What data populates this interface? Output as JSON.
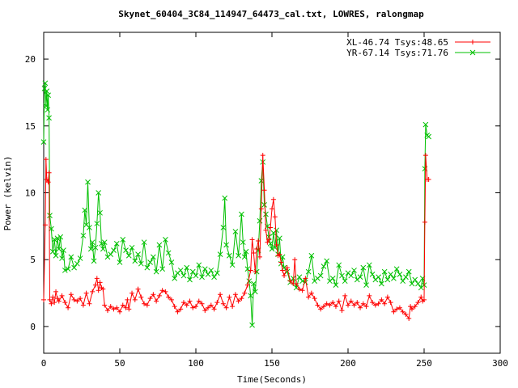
{
  "chart_data": {
    "type": "line",
    "title": "Skynet_60404_3C84_114947_64473_cal.txt, LOWRES, ralongmap",
    "xlabel": "Time(Seconds)",
    "ylabel": "Power (kelvin)",
    "xlim": [
      0,
      300
    ],
    "ylim": [
      -2,
      22
    ],
    "xticks": [
      0,
      50,
      100,
      150,
      200,
      250,
      300
    ],
    "yticks": [
      0,
      5,
      10,
      15,
      20
    ],
    "grid": false,
    "legend_position": "top-right",
    "series": [
      {
        "name": "XL-46.74 Tsys:48.65",
        "color": "#ff0000",
        "marker": "+",
        "points": [
          [
            0,
            2
          ],
          [
            1,
            7.6
          ],
          [
            1.5,
            12.5
          ],
          [
            2,
            11
          ],
          [
            3,
            10.8
          ],
          [
            3.5,
            11.5
          ],
          [
            4,
            2
          ],
          [
            5,
            1.7
          ],
          [
            6,
            2.2
          ],
          [
            7,
            1.8
          ],
          [
            8,
            2.6
          ],
          [
            9,
            2.1
          ],
          [
            10,
            1.9
          ],
          [
            12,
            2.3
          ],
          [
            14,
            1.8
          ],
          [
            16,
            1.4
          ],
          [
            18,
            2.4
          ],
          [
            20,
            2
          ],
          [
            22,
            1.9
          ],
          [
            24,
            2.1
          ],
          [
            26,
            1.6
          ],
          [
            28,
            2.5
          ],
          [
            30,
            1.7
          ],
          [
            32,
            2.6
          ],
          [
            34,
            3.1
          ],
          [
            35,
            3.6
          ],
          [
            36,
            2.7
          ],
          [
            37,
            3.3
          ],
          [
            38,
            2.9
          ],
          [
            39,
            2.8
          ],
          [
            40,
            1.6
          ],
          [
            42,
            1.2
          ],
          [
            44,
            1.5
          ],
          [
            46,
            1.3
          ],
          [
            48,
            1.4
          ],
          [
            50,
            1.1
          ],
          [
            52,
            1.6
          ],
          [
            54,
            1.4
          ],
          [
            55,
            2
          ],
          [
            56,
            1.3
          ],
          [
            58,
            2.5
          ],
          [
            60,
            2
          ],
          [
            62,
            2.8
          ],
          [
            64,
            2.2
          ],
          [
            66,
            1.7
          ],
          [
            68,
            1.6
          ],
          [
            70,
            2.1
          ],
          [
            72,
            2.4
          ],
          [
            74,
            1.9
          ],
          [
            76,
            2.3
          ],
          [
            78,
            2.7
          ],
          [
            80,
            2.6
          ],
          [
            82,
            2.2
          ],
          [
            84,
            2
          ],
          [
            86,
            1.5
          ],
          [
            88,
            1.1
          ],
          [
            90,
            1.3
          ],
          [
            92,
            1.8
          ],
          [
            94,
            1.6
          ],
          [
            96,
            1.9
          ],
          [
            98,
            1.4
          ],
          [
            100,
            1.5
          ],
          [
            102,
            1.9
          ],
          [
            104,
            1.7
          ],
          [
            106,
            1.2
          ],
          [
            108,
            1.4
          ],
          [
            110,
            1.6
          ],
          [
            112,
            1.3
          ],
          [
            114,
            1.8
          ],
          [
            116,
            2.4
          ],
          [
            118,
            1.7
          ],
          [
            120,
            1.4
          ],
          [
            122,
            2.2
          ],
          [
            124,
            1.5
          ],
          [
            126,
            2.4
          ],
          [
            128,
            1.9
          ],
          [
            130,
            2.1
          ],
          [
            132,
            2.5
          ],
          [
            134,
            3.1
          ],
          [
            136,
            4.2
          ],
          [
            137,
            6.5
          ],
          [
            138,
            5.5
          ],
          [
            139,
            4.1
          ],
          [
            140,
            5.8
          ],
          [
            141,
            6.4
          ],
          [
            142,
            5.2
          ],
          [
            143,
            8.8
          ],
          [
            144,
            12.8
          ],
          [
            145,
            10.2
          ],
          [
            146,
            7.2
          ],
          [
            147,
            6.3
          ],
          [
            148,
            6.5
          ],
          [
            149,
            7.4
          ],
          [
            150,
            8.8
          ],
          [
            151,
            9.5
          ],
          [
            152,
            8.2
          ],
          [
            153,
            6.1
          ],
          [
            154,
            5.3
          ],
          [
            155,
            5.4
          ],
          [
            156,
            4.8
          ],
          [
            157,
            4.2
          ],
          [
            158,
            3.8
          ],
          [
            160,
            4.4
          ],
          [
            162,
            3.4
          ],
          [
            164,
            3.2
          ],
          [
            165,
            5
          ],
          [
            166,
            3.2
          ],
          [
            168,
            2.8
          ],
          [
            170,
            2.7
          ],
          [
            172,
            3.6
          ],
          [
            174,
            2.2
          ],
          [
            176,
            2.5
          ],
          [
            178,
            2.1
          ],
          [
            180,
            1.6
          ],
          [
            182,
            1.3
          ],
          [
            184,
            1.5
          ],
          [
            186,
            1.7
          ],
          [
            188,
            1.6
          ],
          [
            190,
            1.8
          ],
          [
            192,
            1.5
          ],
          [
            194,
            1.9
          ],
          [
            196,
            1.2
          ],
          [
            198,
            2.3
          ],
          [
            200,
            1.6
          ],
          [
            202,
            1.9
          ],
          [
            204,
            1.6
          ],
          [
            206,
            1.8
          ],
          [
            208,
            1.4
          ],
          [
            210,
            1.7
          ],
          [
            212,
            1.5
          ],
          [
            214,
            2.3
          ],
          [
            216,
            1.8
          ],
          [
            218,
            1.6
          ],
          [
            220,
            1.7
          ],
          [
            222,
            2
          ],
          [
            224,
            1.7
          ],
          [
            226,
            2.2
          ],
          [
            228,
            1.8
          ],
          [
            230,
            1.1
          ],
          [
            232,
            1.3
          ],
          [
            234,
            1.4
          ],
          [
            236,
            1.1
          ],
          [
            238,
            0.9
          ],
          [
            240,
            0.6
          ],
          [
            241,
            1.5
          ],
          [
            242,
            1.3
          ],
          [
            244,
            1.5
          ],
          [
            246,
            1.8
          ],
          [
            248,
            2.2
          ],
          [
            249,
            1.9
          ],
          [
            250,
            2
          ],
          [
            250.5,
            7.8
          ],
          [
            251,
            12.8
          ],
          [
            252,
            11
          ],
          [
            253,
            11
          ]
        ]
      },
      {
        "name": "YR-67.14 Tsys:71.76",
        "color": "#00c000",
        "marker": "x",
        "points": [
          [
            0,
            13.8
          ],
          [
            0.5,
            17.8
          ],
          [
            1,
            18.2
          ],
          [
            1.5,
            16.5
          ],
          [
            2,
            17.6
          ],
          [
            2.5,
            16.2
          ],
          [
            3,
            17.3
          ],
          [
            3.5,
            15.6
          ],
          [
            4,
            8.3
          ],
          [
            5,
            7.3
          ],
          [
            6,
            5.6
          ],
          [
            7,
            6.5
          ],
          [
            8,
            5.3
          ],
          [
            9,
            6.6
          ],
          [
            10,
            5.8
          ],
          [
            11,
            6.7
          ],
          [
            12,
            5.1
          ],
          [
            13,
            5.7
          ],
          [
            14,
            4.2
          ],
          [
            16,
            4.3
          ],
          [
            18,
            5.2
          ],
          [
            20,
            4.4
          ],
          [
            22,
            4.7
          ],
          [
            24,
            5.1
          ],
          [
            26,
            6.8
          ],
          [
            27,
            8.7
          ],
          [
            28,
            7.6
          ],
          [
            29,
            10.8
          ],
          [
            30,
            7.4
          ],
          [
            31,
            5.8
          ],
          [
            32,
            6.3
          ],
          [
            33,
            4.9
          ],
          [
            34,
            5.9
          ],
          [
            35,
            7.7
          ],
          [
            36,
            10
          ],
          [
            37,
            8.5
          ],
          [
            38,
            6.2
          ],
          [
            39,
            5.8
          ],
          [
            40,
            6.3
          ],
          [
            42,
            5.2
          ],
          [
            44,
            5.4
          ],
          [
            46,
            5.7
          ],
          [
            48,
            6.2
          ],
          [
            50,
            4.8
          ],
          [
            52,
            6.5
          ],
          [
            54,
            5.7
          ],
          [
            56,
            5.3
          ],
          [
            58,
            5.9
          ],
          [
            60,
            4.9
          ],
          [
            62,
            5.4
          ],
          [
            64,
            4.7
          ],
          [
            66,
            6.3
          ],
          [
            68,
            4.4
          ],
          [
            70,
            4.8
          ],
          [
            72,
            5.2
          ],
          [
            74,
            4.1
          ],
          [
            76,
            6.1
          ],
          [
            78,
            4.3
          ],
          [
            80,
            6.5
          ],
          [
            82,
            5.5
          ],
          [
            84,
            4.8
          ],
          [
            86,
            3.6
          ],
          [
            88,
            4
          ],
          [
            90,
            4.2
          ],
          [
            92,
            3.8
          ],
          [
            94,
            4.4
          ],
          [
            96,
            3.5
          ],
          [
            98,
            4.1
          ],
          [
            100,
            3.8
          ],
          [
            102,
            4.6
          ],
          [
            104,
            3.7
          ],
          [
            106,
            4.3
          ],
          [
            108,
            3.9
          ],
          [
            110,
            4.2
          ],
          [
            112,
            3.7
          ],
          [
            114,
            4
          ],
          [
            116,
            5.4
          ],
          [
            118,
            7.4
          ],
          [
            119,
            9.6
          ],
          [
            120,
            6.1
          ],
          [
            122,
            5.3
          ],
          [
            124,
            4.6
          ],
          [
            126,
            7.1
          ],
          [
            128,
            5.3
          ],
          [
            130,
            8.4
          ],
          [
            131,
            6.3
          ],
          [
            132,
            5.2
          ],
          [
            133,
            5.6
          ],
          [
            134,
            4.3
          ],
          [
            135,
            3.4
          ],
          [
            136,
            2.3
          ],
          [
            137,
            0.1
          ],
          [
            138,
            3.2
          ],
          [
            139,
            2.6
          ],
          [
            140,
            4.1
          ],
          [
            141,
            5.7
          ],
          [
            142,
            7.9
          ],
          [
            143,
            10.9
          ],
          [
            144,
            12.3
          ],
          [
            145,
            9.1
          ],
          [
            146,
            8.4
          ],
          [
            147,
            7.5
          ],
          [
            148,
            6.7
          ],
          [
            149,
            6.2
          ],
          [
            150,
            5.8
          ],
          [
            151,
            7
          ],
          [
            152,
            5.9
          ],
          [
            153,
            7.2
          ],
          [
            154,
            5.4
          ],
          [
            155,
            6.6
          ],
          [
            156,
            4.7
          ],
          [
            157,
            5.2
          ],
          [
            158,
            4.4
          ],
          [
            160,
            4.1
          ],
          [
            162,
            3.3
          ],
          [
            164,
            3.6
          ],
          [
            166,
            2.9
          ],
          [
            168,
            3.7
          ],
          [
            170,
            3.4
          ],
          [
            172,
            3.3
          ],
          [
            174,
            4.1
          ],
          [
            176,
            5.3
          ],
          [
            178,
            3.4
          ],
          [
            180,
            3.6
          ],
          [
            182,
            3.8
          ],
          [
            184,
            4.5
          ],
          [
            186,
            4.9
          ],
          [
            188,
            3.4
          ],
          [
            190,
            3.6
          ],
          [
            192,
            3.1
          ],
          [
            194,
            4.6
          ],
          [
            196,
            3.8
          ],
          [
            198,
            3.4
          ],
          [
            200,
            4
          ],
          [
            202,
            3.8
          ],
          [
            204,
            4.2
          ],
          [
            206,
            3.5
          ],
          [
            208,
            3.7
          ],
          [
            210,
            4.4
          ],
          [
            212,
            3.1
          ],
          [
            214,
            4.6
          ],
          [
            216,
            3.9
          ],
          [
            218,
            3.5
          ],
          [
            220,
            3.7
          ],
          [
            222,
            3.2
          ],
          [
            224,
            4.1
          ],
          [
            226,
            3.5
          ],
          [
            228,
            3.9
          ],
          [
            230,
            3.6
          ],
          [
            232,
            4.3
          ],
          [
            234,
            3.9
          ],
          [
            236,
            3.4
          ],
          [
            238,
            3.7
          ],
          [
            240,
            4.1
          ],
          [
            242,
            3.2
          ],
          [
            244,
            3.5
          ],
          [
            246,
            3.2
          ],
          [
            248,
            2.9
          ],
          [
            249,
            3.6
          ],
          [
            250,
            3.1
          ],
          [
            250.5,
            11.8
          ],
          [
            251,
            15.1
          ],
          [
            252,
            14.3
          ],
          [
            253,
            14.2
          ]
        ]
      }
    ]
  }
}
